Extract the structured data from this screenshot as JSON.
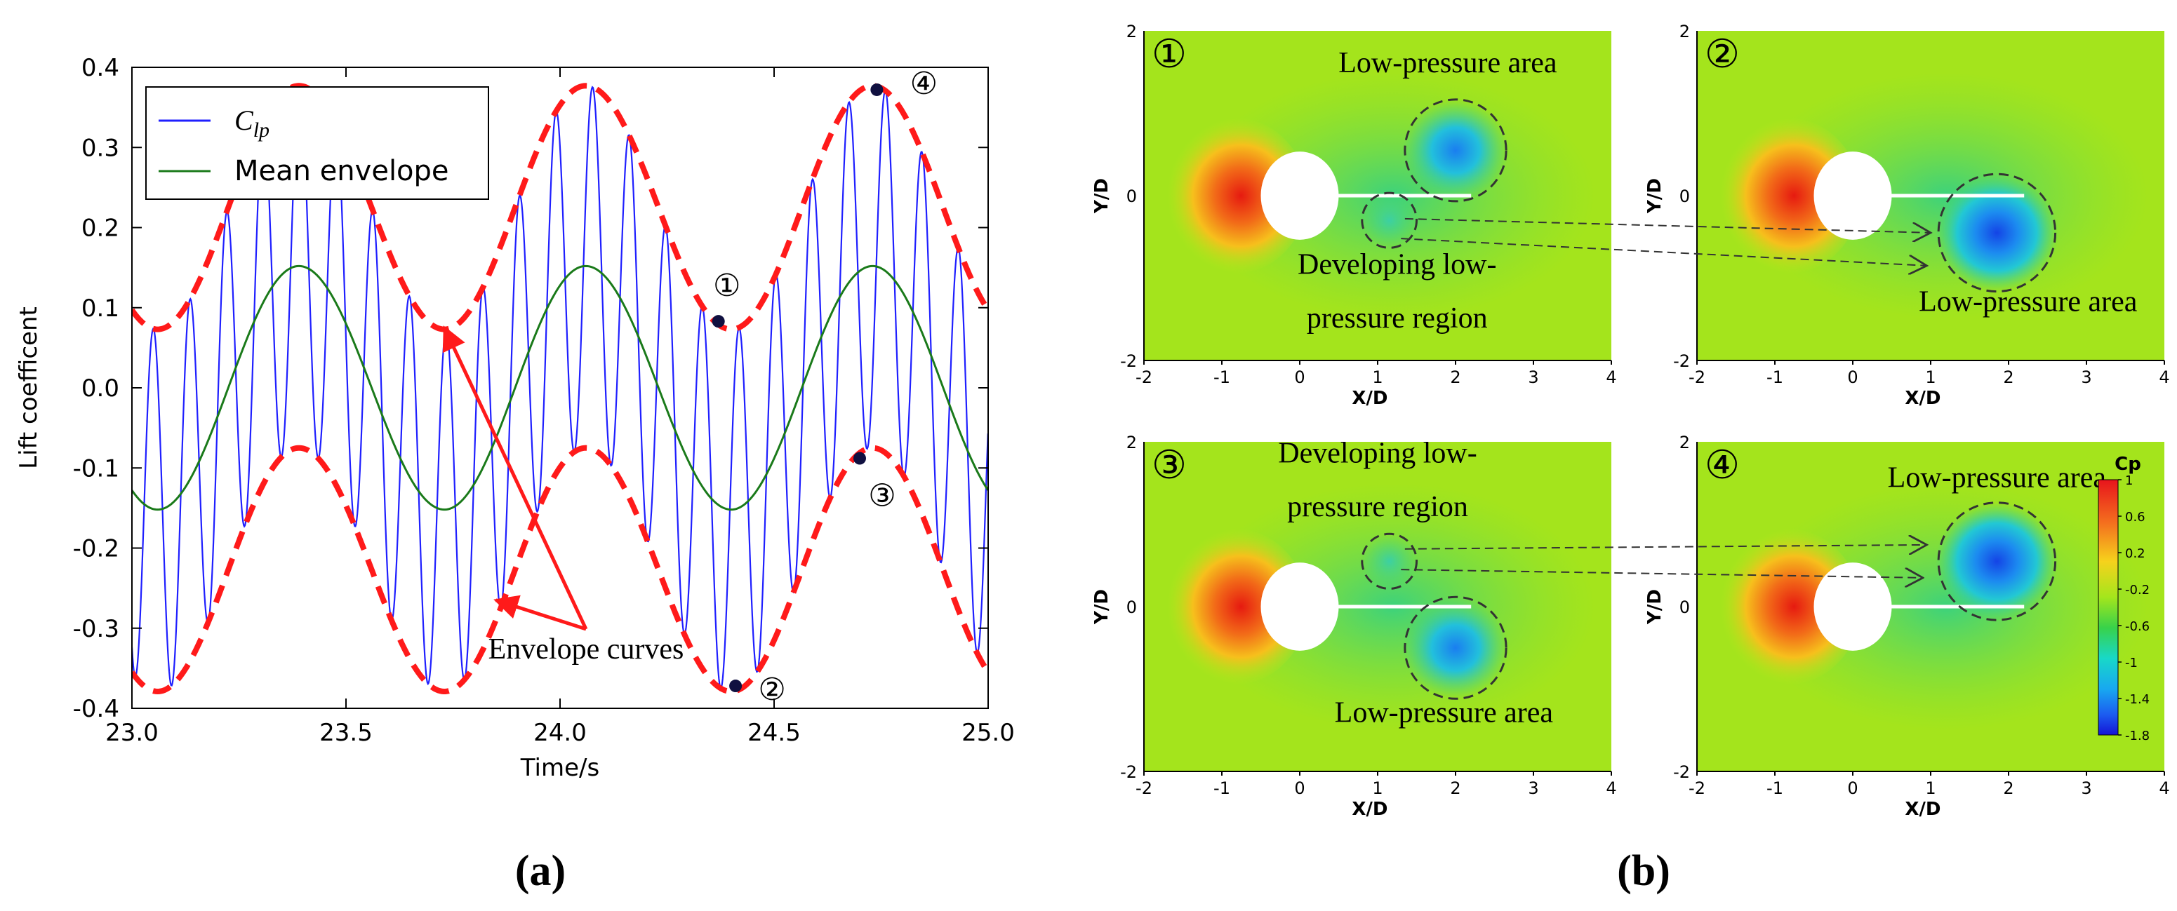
{
  "chart_data": [
    {
      "type": "line",
      "panel_label": "(a)",
      "title": "",
      "xlabel": "Time/s",
      "ylabel": "Lift coefficent",
      "xlim": [
        23.0,
        25.0
      ],
      "ylim": [
        -0.4,
        0.4
      ],
      "xticks": [
        "23.0",
        "23.5",
        "24.0",
        "24.5",
        "25.0"
      ],
      "yticks": [
        "0.4",
        "0.3",
        "0.2",
        "0.1",
        "0.0",
        "-0.1",
        "-0.2",
        "-0.3",
        "-0.4"
      ],
      "legend": {
        "placement": "top-left",
        "entries": [
          {
            "label_main": "C",
            "label_sub": "lp",
            "color": "#1f1fff"
          },
          {
            "label_main": "Mean envelope",
            "label_sub": "",
            "color": "#1a7a1a"
          }
        ]
      },
      "series": [
        {
          "name": "C_lp",
          "kind": "oscillation",
          "color": "#1f1fff",
          "period": 0.0855,
          "phase_t": 23.05
        },
        {
          "name": "Mean envelope",
          "kind": "mean",
          "color": "#1a7a1a",
          "amplitude": 0.152,
          "peak_t": [
            23.39,
            24.06,
            24.73
          ],
          "trough_t": [
            23.06,
            23.73,
            24.4
          ]
        },
        {
          "name": "Upper envelope",
          "kind": "upper",
          "color": "#ff1a1a",
          "base": 0.225,
          "amplitude": 0.152,
          "style": "dashed"
        },
        {
          "name": "Lower envelope",
          "kind": "lower",
          "color": "#ff1a1a",
          "base": -0.227,
          "amplitude": 0.152,
          "style": "dashed"
        }
      ],
      "markers": [
        {
          "label": "①",
          "x": 24.37,
          "y": 0.083
        },
        {
          "label": "②",
          "x": 24.41,
          "y": -0.372
        },
        {
          "label": "③",
          "x": 24.7,
          "y": -0.088
        },
        {
          "label": "④",
          "x": 24.74,
          "y": 0.372
        }
      ],
      "annotations": [
        {
          "text": "Envelope curves",
          "arrow_targets": [
            {
              "x": 23.73,
              "y": 0.075
            },
            {
              "x": 23.85,
              "y": -0.265
            }
          ]
        }
      ]
    },
    {
      "type": "heatmap",
      "panel_label": "(b)",
      "xlabel": "X/D",
      "ylabel": "Y/D",
      "xlim": [
        -2,
        4
      ],
      "ylim": [
        -2,
        2
      ],
      "xticks": [
        "-2",
        "-1",
        "0",
        "1",
        "2",
        "3",
        "4"
      ],
      "yticks": [
        "2",
        "0",
        "-2"
      ],
      "colorbar": {
        "title": "Cp",
        "ticks": [
          "1",
          "0.6",
          "0.2",
          "-0.2",
          "-0.6",
          "-1",
          "-1.4",
          "-1.8"
        ],
        "range": [
          -1.8,
          1.0
        ]
      },
      "panels": [
        {
          "label": "①",
          "annotations": [
            "Low-pressure area",
            "Developing low-",
            "pressure region"
          ],
          "regions": [
            {
              "x": 2.0,
              "y": 0.55,
              "r": 0.65,
              "strength": 0.7
            },
            {
              "x": 1.15,
              "y": -0.3,
              "r": 0.35,
              "strength": 0.15
            }
          ]
        },
        {
          "label": "②",
          "annotations": [
            "Low-pressure area"
          ],
          "regions": [
            {
              "x": 1.85,
              "y": -0.45,
              "r": 0.75,
              "strength": 1.0
            }
          ]
        },
        {
          "label": "③",
          "annotations": [
            "Developing low-",
            "pressure region",
            "Low-pressure area"
          ],
          "regions": [
            {
              "x": 1.15,
              "y": 0.55,
              "r": 0.35,
              "strength": 0.15
            },
            {
              "x": 2.0,
              "y": -0.5,
              "r": 0.65,
              "strength": 0.7
            }
          ]
        },
        {
          "label": "④",
          "annotations": [
            "Low-pressure area"
          ],
          "regions": [
            {
              "x": 1.85,
              "y": 0.55,
              "r": 0.75,
              "strength": 1.0
            }
          ]
        }
      ]
    }
  ]
}
